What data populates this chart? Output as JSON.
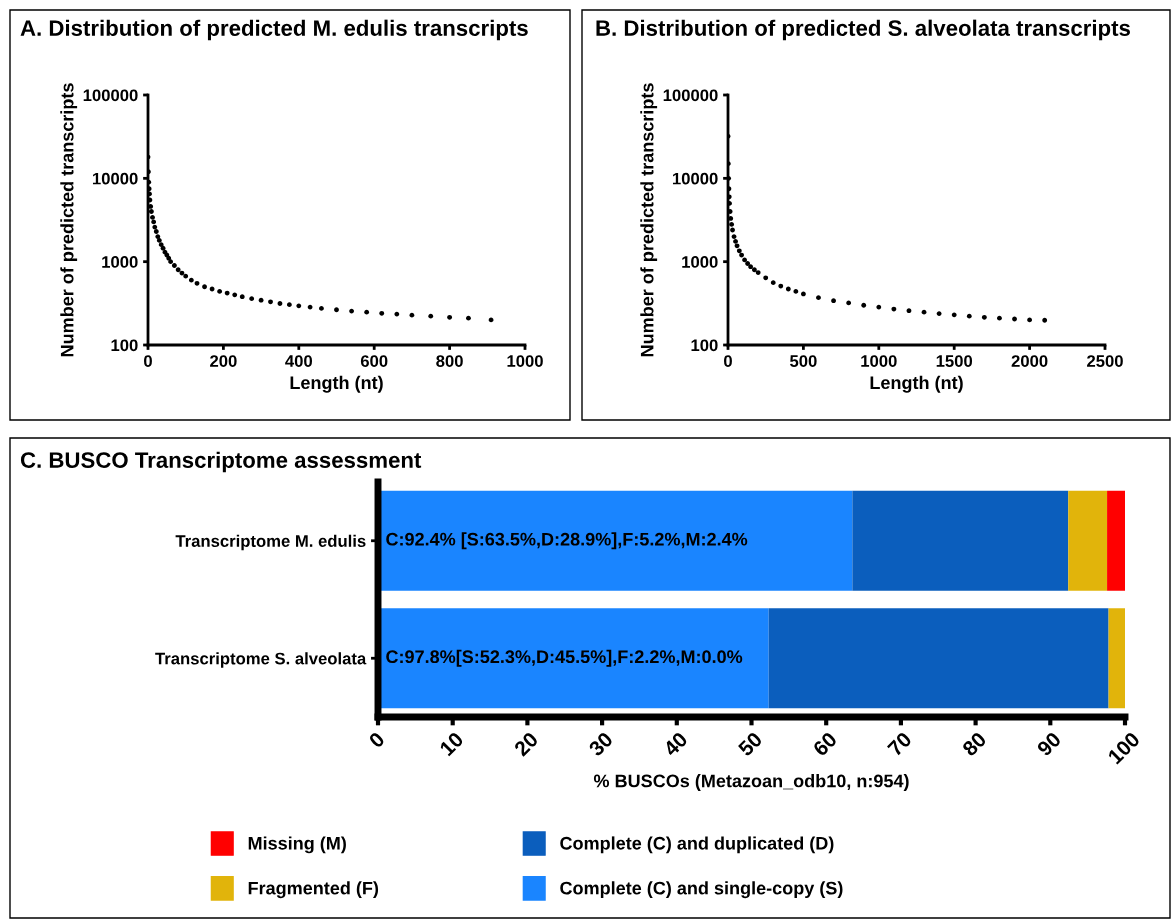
{
  "chart_data": [
    {
      "type": "scatter",
      "title": "A. Distribution of predicted M. edulis transcripts",
      "xlabel": "Length (nt)",
      "ylabel": "Number of predicted transcripts",
      "log": "y",
      "xlim": [
        0,
        1000
      ],
      "xticks": [
        0,
        200,
        400,
        600,
        800,
        1000
      ],
      "ylim": [
        100,
        100000
      ],
      "yticks": [
        100,
        1000,
        10000,
        100000
      ],
      "marker": "circle",
      "grid": false,
      "series": [
        {
          "color": "#000000",
          "x": [
            0,
            1,
            2,
            3,
            4,
            5,
            7,
            9,
            12,
            15,
            18,
            22,
            26,
            30,
            35,
            40,
            45,
            50,
            55,
            60,
            70,
            80,
            90,
            100,
            115,
            130,
            150,
            170,
            190,
            210,
            230,
            250,
            275,
            300,
            325,
            350,
            375,
            400,
            430,
            460,
            500,
            540,
            580,
            620,
            660,
            700,
            750,
            800,
            850,
            910
          ],
          "values": [
            18000,
            12000,
            9000,
            7500,
            6500,
            5500,
            4600,
            4000,
            3400,
            3000,
            2600,
            2300,
            2000,
            1800,
            1600,
            1450,
            1300,
            1200,
            1100,
            1000,
            900,
            800,
            730,
            670,
            600,
            550,
            500,
            470,
            440,
            420,
            400,
            380,
            360,
            345,
            330,
            315,
            305,
            295,
            285,
            275,
            265,
            255,
            248,
            240,
            235,
            228,
            222,
            215,
            210,
            200
          ]
        }
      ]
    },
    {
      "type": "scatter",
      "title": "B. Distribution of predicted S. alveolata transcripts",
      "xlabel": "Length (nt)",
      "ylabel": "Number of predicted transcripts",
      "log": "y",
      "xlim": [
        0,
        2500
      ],
      "xticks": [
        0,
        500,
        1000,
        1500,
        2000,
        2500
      ],
      "ylim": [
        100,
        100000
      ],
      "yticks": [
        100,
        1000,
        10000,
        100000
      ],
      "marker": "circle",
      "grid": false,
      "series": [
        {
          "color": "#000000",
          "x": [
            0,
            2,
            4,
            6,
            8,
            10,
            14,
            18,
            24,
            30,
            40,
            50,
            60,
            75,
            90,
            110,
            130,
            150,
            175,
            200,
            250,
            300,
            350,
            400,
            450,
            500,
            600,
            700,
            800,
            900,
            1000,
            1100,
            1200,
            1300,
            1400,
            1500,
            1600,
            1700,
            1800,
            1900,
            2000,
            2100
          ],
          "values": [
            32000,
            15000,
            10000,
            7500,
            6000,
            5000,
            4000,
            3300,
            2800,
            2400,
            2000,
            1750,
            1550,
            1350,
            1200,
            1050,
            950,
            870,
            800,
            740,
            640,
            560,
            510,
            470,
            440,
            410,
            370,
            340,
            320,
            300,
            285,
            270,
            258,
            248,
            238,
            230,
            222,
            215,
            210,
            205,
            200,
            198
          ]
        }
      ]
    },
    {
      "type": "bar",
      "orientation": "horizontal",
      "stacked": true,
      "title": "C. BUSCO Transcriptome assessment",
      "xlabel": "% BUSCOs (Metazoan_odb10, n:954)",
      "categories": [
        "Transcriptome M. edulis",
        "Transcriptome S. alveolata"
      ],
      "xlim": [
        0,
        100
      ],
      "xticks": [
        0,
        10,
        20,
        30,
        40,
        50,
        60,
        70,
        80,
        90,
        100
      ],
      "legend": "bottom",
      "grid": false,
      "annotations": [
        "C:92.4% [S:63.5%,D:28.9%],F:5.2%,M:2.4%",
        "C:97.8%[S:52.3%,D:45.5%],F:2.2%,M:0.0%"
      ],
      "series": [
        {
          "name": "Complete (C) and single-copy (S)",
          "color": "#1a85ff",
          "values": [
            63.5,
            52.3
          ]
        },
        {
          "name": "Complete (C) and duplicated (D)",
          "color": "#0b5ebd",
          "values": [
            28.9,
            45.5
          ]
        },
        {
          "name": "Fragmented (F)",
          "color": "#e1b40b",
          "values": [
            5.2,
            2.2
          ]
        },
        {
          "name": "Missing (M)",
          "color": "#ff0000",
          "values": [
            2.4,
            0.0
          ]
        }
      ]
    }
  ]
}
